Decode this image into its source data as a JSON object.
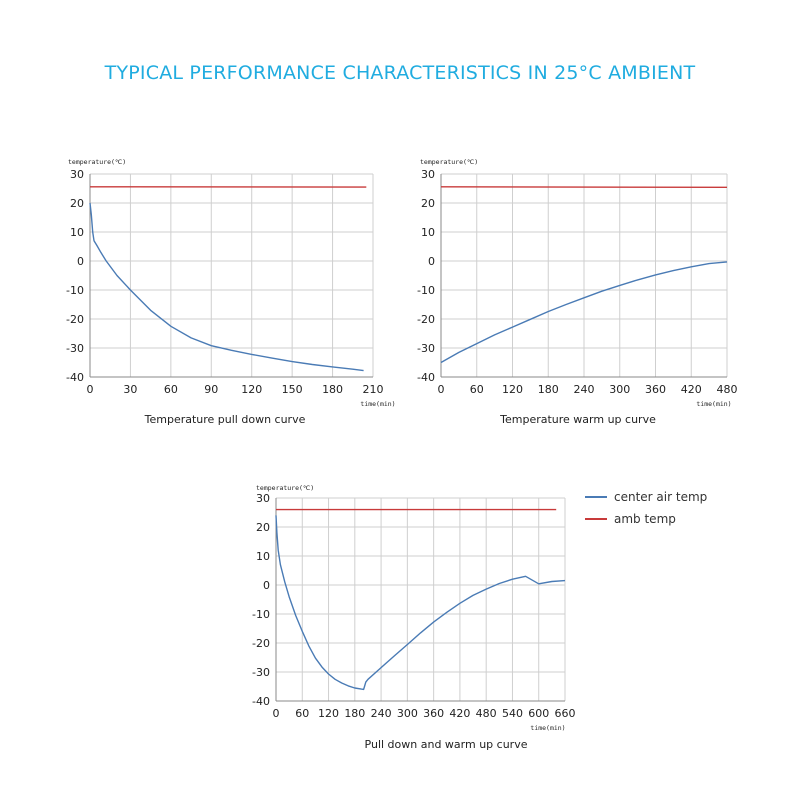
{
  "page": {
    "title": "TYPICAL PERFORMANCE CHARACTERISTICS IN 25°C AMBIENT"
  },
  "colors": {
    "title": "#20ace0",
    "center_air_temp": "#4a7bb5",
    "amb_temp": "#c83a3a",
    "grid": "#cfcfcf",
    "axis": "#8a8a8a",
    "text": "#222222"
  },
  "legend": {
    "placement": "right of bottom chart",
    "items": [
      {
        "label": "center air temp",
        "color": "#4a7bb5"
      },
      {
        "label": "amb temp",
        "color": "#c83a3a"
      }
    ]
  },
  "chart_data": [
    {
      "type": "line",
      "title": "Temperature pull down curve",
      "xlabel": "time(min)",
      "ylabel": "temperature(℃)",
      "xlim": [
        0,
        210
      ],
      "ylim": [
        -40,
        30
      ],
      "xticks": [
        0,
        30,
        60,
        90,
        120,
        150,
        180,
        210
      ],
      "yticks": [
        -40,
        -30,
        -20,
        -10,
        0,
        10,
        20,
        30
      ],
      "grid": true,
      "series": [
        {
          "key": "center_air_temp",
          "color": "#4a7bb5",
          "x": [
            0,
            1,
            2,
            3,
            5,
            8,
            12,
            20,
            30,
            45,
            60,
            75,
            90,
            105,
            120,
            135,
            150,
            165,
            180,
            195,
            203
          ],
          "y": [
            20,
            16,
            10,
            7,
            5.5,
            3,
            0,
            -5,
            -10,
            -17,
            -22.5,
            -26.5,
            -29.2,
            -30.8,
            -32.2,
            -33.5,
            -34.7,
            -35.7,
            -36.5,
            -37.3,
            -37.8
          ]
        },
        {
          "key": "amb_temp",
          "color": "#c83a3a",
          "x": [
            0,
            205
          ],
          "y": [
            25.6,
            25.5
          ]
        }
      ]
    },
    {
      "type": "line",
      "title": "Temperature warm up  curve",
      "xlabel": "time(min)",
      "ylabel": "temperature(℃)",
      "xlim": [
        0,
        480
      ],
      "ylim": [
        -40,
        30
      ],
      "xticks": [
        0,
        60,
        120,
        180,
        240,
        300,
        360,
        420,
        480
      ],
      "yticks": [
        -40,
        -30,
        -20,
        -10,
        0,
        10,
        20,
        30
      ],
      "grid": true,
      "series": [
        {
          "key": "center_air_temp",
          "color": "#4a7bb5",
          "x": [
            0,
            30,
            60,
            90,
            120,
            150,
            180,
            210,
            240,
            270,
            300,
            330,
            360,
            390,
            420,
            450,
            480
          ],
          "y": [
            -35,
            -31.5,
            -28.5,
            -25.5,
            -22.8,
            -20.1,
            -17.4,
            -15,
            -12.7,
            -10.4,
            -8.4,
            -6.5,
            -4.8,
            -3.3,
            -2,
            -0.9,
            -0.3
          ]
        },
        {
          "key": "amb_temp",
          "color": "#c83a3a",
          "x": [
            0,
            480
          ],
          "y": [
            25.6,
            25.4
          ]
        }
      ]
    },
    {
      "type": "line",
      "title": "Pull down and warm up curve",
      "xlabel": "time(min)",
      "ylabel": "temperature(℃)",
      "xlim": [
        0,
        660
      ],
      "ylim": [
        -40,
        30
      ],
      "xticks": [
        0,
        60,
        120,
        180,
        240,
        300,
        360,
        420,
        480,
        540,
        600,
        660
      ],
      "yticks": [
        -40,
        -30,
        -20,
        -10,
        0,
        10,
        20,
        30
      ],
      "grid": true,
      "series": [
        {
          "name": "center air temp",
          "key": "center_air_temp",
          "color": "#4a7bb5",
          "x": [
            0,
            2,
            5,
            10,
            20,
            30,
            45,
            60,
            75,
            90,
            105,
            120,
            135,
            150,
            165,
            180,
            195,
            200,
            202,
            205,
            210,
            240,
            270,
            300,
            330,
            360,
            390,
            420,
            450,
            480,
            510,
            540,
            570,
            600,
            630,
            660
          ],
          "y": [
            24,
            18,
            12,
            7,
            1,
            -4,
            -10.5,
            -16,
            -21,
            -25.2,
            -28.3,
            -30.7,
            -32.5,
            -33.8,
            -34.8,
            -35.5,
            -35.9,
            -36,
            -35,
            -33.5,
            -32.5,
            -28.5,
            -24.5,
            -20.5,
            -16.5,
            -12.8,
            -9.4,
            -6.3,
            -3.6,
            -1.4,
            0.5,
            2,
            3,
            0.4,
            1.2,
            1.5
          ]
        },
        {
          "name": "amb temp",
          "key": "amb_temp",
          "color": "#c83a3a",
          "x": [
            0,
            640
          ],
          "y": [
            26,
            26
          ]
        }
      ]
    }
  ]
}
